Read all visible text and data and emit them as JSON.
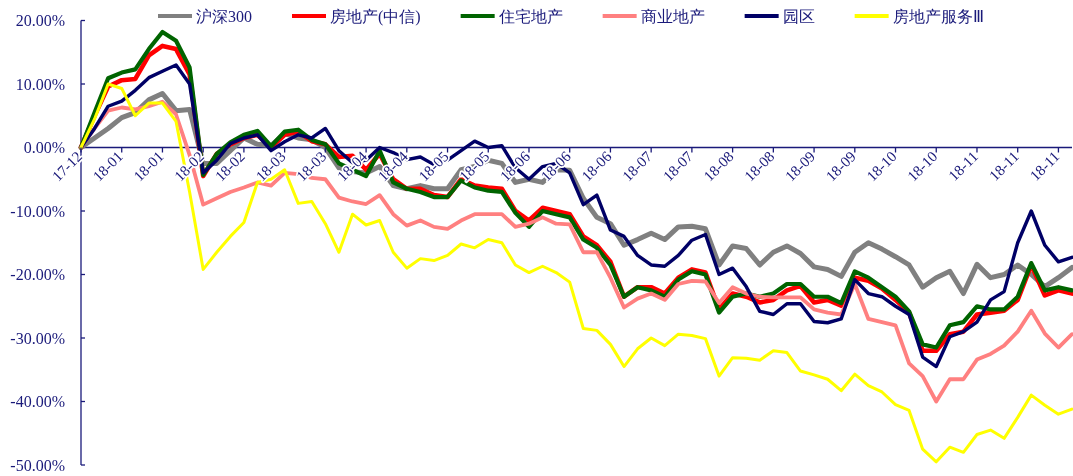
{
  "chart_data": {
    "type": "line",
    "legend": "top",
    "ylim": [
      -50,
      20
    ],
    "yticks": [
      {
        "value": -50,
        "label": "-50.00%"
      },
      {
        "value": -40,
        "label": "-40.00%"
      },
      {
        "value": -30,
        "label": "-30.00%"
      },
      {
        "value": -20,
        "label": "-20.00%"
      },
      {
        "value": -10,
        "label": "-10.00%"
      },
      {
        "value": 0,
        "label": "0.00%"
      },
      {
        "value": 10,
        "label": "10.00%"
      },
      {
        "value": 20,
        "label": "20.00%"
      }
    ],
    "categories": [
      "17-12",
      null,
      null,
      "18-01",
      null,
      null,
      "18-01",
      null,
      null,
      "18-02",
      null,
      null,
      "18-02",
      null,
      null,
      "18-03",
      null,
      null,
      "18-03",
      null,
      null,
      "18-04",
      null,
      null,
      "18-04",
      null,
      null,
      "18-05",
      null,
      null,
      "18-05",
      null,
      null,
      "18-06",
      null,
      null,
      "18-06",
      null,
      null,
      "18-06",
      null,
      null,
      "18-07",
      null,
      null,
      "18-07",
      null,
      null,
      "18-08",
      null,
      null,
      "18-08",
      null,
      null,
      "18-09",
      null,
      null,
      "18-09",
      null,
      null,
      "18-10",
      null,
      null,
      "18-10",
      null,
      null,
      "18-11",
      null,
      null,
      "18-11",
      null,
      null,
      "18-11",
      null
    ],
    "series": [
      {
        "name": "沪深300",
        "color": "#808080",
        "values": [
          0,
          1.5,
          3.0,
          4.7,
          5.5,
          7.5,
          8.5,
          5.8,
          6.0,
          -2.5,
          -2.5,
          -0.5,
          1.5,
          0.5,
          0.3,
          2.2,
          1.5,
          1.2,
          0,
          -3.2,
          -3.8,
          -4.0,
          -3.0,
          -6.0,
          -6.5,
          -6.0,
          -6.5,
          -6.5,
          -3.5,
          -3.0,
          -2.0,
          -2.5,
          -5.5,
          -5.0,
          -5.5,
          -3.5,
          -3.6,
          -8,
          -11,
          -12,
          -15.4,
          -14.5,
          -13.5,
          -14.5,
          -12.5,
          -12.4,
          -12.8,
          -18.5,
          -15.5,
          -15.9,
          -18.5,
          -16.5,
          -15.5,
          -16.7,
          -18.8,
          -19.2,
          -20.3,
          -16.5,
          -15,
          -16,
          -17.2,
          -18.5,
          -22,
          -20.5,
          -19.5,
          -23,
          -18.4,
          -20.5,
          -20,
          -18.5,
          -20,
          -21.9,
          -20.5,
          -18.9
        ]
      },
      {
        "name": "房地产(中信)",
        "color": "#ff0000",
        "values": [
          0,
          5,
          9.6,
          10.6,
          10.8,
          14.5,
          16,
          15.5,
          11.5,
          -4.5,
          -1,
          0.5,
          1.5,
          2,
          0,
          2,
          2.5,
          1.0,
          0.5,
          -1.5,
          -1.3,
          -3.5,
          -1,
          -5,
          -6.5,
          -6.5,
          -7.5,
          -7.8,
          -5,
          -6,
          -6.3,
          -6.5,
          -10,
          -11.5,
          -9.5,
          -10,
          -10.5,
          -14,
          -15.4,
          -18,
          -23.5,
          -22,
          -22,
          -23,
          -20.5,
          -19.2,
          -19.7,
          -25.5,
          -23,
          -23.5,
          -24.4,
          -24,
          -22.5,
          -21.8,
          -24.4,
          -24,
          -24.9,
          -20.5,
          -21,
          -22.2,
          -24,
          -26,
          -32,
          -32,
          -29.4,
          -29,
          -26.3,
          -26,
          -25.7,
          -24,
          -18.5,
          -23.3,
          -22.5,
          -23
        ]
      },
      {
        "name": "住宅地产",
        "color": "#006400",
        "values": [
          0,
          5.5,
          10.9,
          11.8,
          12.3,
          15.5,
          18.2,
          16.8,
          12.6,
          -4.3,
          -1,
          0.8,
          2,
          2.6,
          0.2,
          2.5,
          2.8,
          1.2,
          0.5,
          -2.5,
          -3.5,
          -4.5,
          -0.5,
          -5.5,
          -6.5,
          -7,
          -7.8,
          -7.8,
          -5.2,
          -6.3,
          -6.8,
          -7,
          -10.3,
          -12.5,
          -10,
          -10.5,
          -11,
          -14.5,
          -15.8,
          -18.5,
          -23.5,
          -22,
          -22.5,
          -23.5,
          -20.8,
          -19.5,
          -20,
          -26,
          -23.5,
          -23,
          -23.5,
          -23,
          -21.5,
          -21.5,
          -23.5,
          -23.5,
          -24.5,
          -19.5,
          -20.5,
          -22,
          -23.5,
          -25.8,
          -31,
          -31.5,
          -28,
          -27.5,
          -25,
          -25.5,
          -25.5,
          -23.5,
          -18.2,
          -22.5,
          -22,
          -22.5
        ]
      },
      {
        "name": "商业地产",
        "color": "#ff8080",
        "values": [
          0,
          3,
          5.8,
          6.3,
          6,
          6.5,
          7.2,
          5.2,
          -1.2,
          -9,
          -8,
          -7,
          -6.3,
          -5.5,
          -6,
          -4,
          -4.2,
          -4.8,
          -5,
          -7.9,
          -8.5,
          -8.9,
          -7.5,
          -10.5,
          -12.3,
          -11.5,
          -12.5,
          -12.8,
          -11.5,
          -10.5,
          -10.5,
          -10.5,
          -12.5,
          -12,
          -11,
          -12,
          -12.1,
          -16.5,
          -16.5,
          -20.5,
          -25.2,
          -23.8,
          -23,
          -24,
          -21.5,
          -21,
          -21.1,
          -24.5,
          -22,
          -23,
          -23.5,
          -23.6,
          -23.6,
          -23.6,
          -25.5,
          -26,
          -26.3,
          -21.5,
          -27,
          -27.5,
          -28,
          -34,
          -36,
          -40,
          -36.5,
          -36.5,
          -33.4,
          -32.5,
          -31.2,
          -29,
          -25.7,
          -29.3,
          -31.5,
          -29.4
        ]
      },
      {
        "name": "园区",
        "color": "#000066",
        "values": [
          0,
          3,
          6.5,
          7.3,
          9,
          11,
          12,
          13,
          10,
          -4,
          -2,
          0.6,
          1.5,
          2,
          -0.5,
          0.9,
          2,
          1.5,
          3,
          -0.5,
          -2.4,
          -2,
          0,
          -0.8,
          -1.9,
          -1.5,
          -2.7,
          -2,
          -0.5,
          1,
          0,
          0.3,
          -3.2,
          -5,
          -3,
          -2.5,
          -4,
          -9,
          -7.5,
          -13,
          -14,
          -17,
          -18.5,
          -18.7,
          -17,
          -14.6,
          -13.7,
          -20,
          -19,
          -21.9,
          -25.8,
          -26.3,
          -24.6,
          -24.6,
          -27.4,
          -27.6,
          -27,
          -20.8,
          -23,
          -23.5,
          -25,
          -26.3,
          -33,
          -34.5,
          -29.8,
          -29,
          -27.5,
          -24,
          -22.7,
          -15,
          -10,
          -15.4,
          -18,
          -17.3
        ]
      },
      {
        "name": "房地产服务Ⅲ",
        "color": "#ffff00",
        "values": [
          0,
          4.5,
          10,
          9.3,
          5,
          7,
          7,
          4.1,
          -7,
          -19.2,
          -16.5,
          -14,
          -11.8,
          -5.5,
          -5,
          -3.5,
          -8.8,
          -8.5,
          -12,
          -16.5,
          -10.5,
          -12.2,
          -11.5,
          -16.5,
          -19,
          -17.5,
          -17.8,
          -17,
          -15.2,
          -15.8,
          -14.5,
          -15,
          -18.5,
          -19.7,
          -18.7,
          -19.7,
          -21.2,
          -28.5,
          -28.8,
          -31,
          -34.5,
          -31.7,
          -30,
          -31.2,
          -29.4,
          -29.6,
          -30.1,
          -36,
          -33.1,
          -33.2,
          -33.5,
          -32,
          -32.3,
          -35.2,
          -35.8,
          -36.5,
          -38.3,
          -35.7,
          -37.5,
          -38.5,
          -40.5,
          -41.4,
          -47.5,
          -49.5,
          -47.2,
          -48,
          -45.2,
          -44.5,
          -45.8,
          -42.5,
          -39,
          -40.6,
          -42,
          -41.2
        ]
      }
    ]
  }
}
